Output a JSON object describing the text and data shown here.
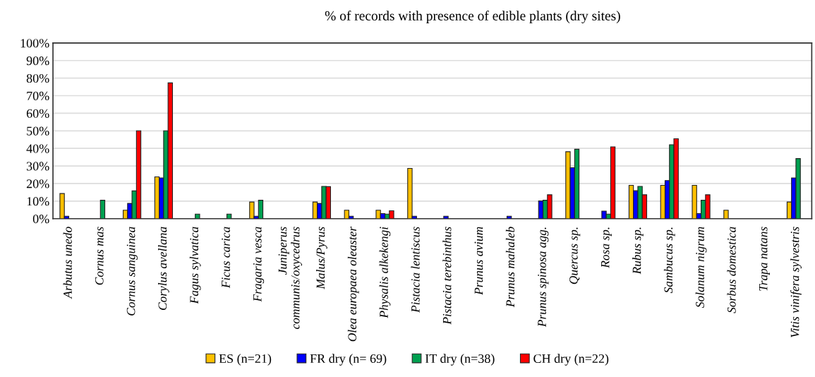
{
  "chart_data": {
    "type": "bar",
    "title": "% of records with presence of edible plants (dry sites)",
    "categories": [
      "Arbutus unedo",
      "Cornus mas",
      "Cornus sanguinea",
      "Corylus avellana",
      "Fagus sylvatica",
      "Ficus carica",
      "Fragaria vesca",
      "Juniperus\ncommunis/oxycedrus",
      "Malus/Pyrus",
      "Olea europaea oleaster",
      "Physalis alkekengi",
      "Pistacia lentiscus",
      "Pistacia terebinthus",
      "Prunus avium",
      "Prunus mahaleb",
      "Prunus spinosa agg.",
      "Quercus sp.",
      "Rosa sp.",
      "Rubus sp.",
      "Sambucus sp.",
      "Solanum nigrum",
      "Sorbus domestica",
      "Trapa natans",
      "Vitis vinifera sylvestris"
    ],
    "series": [
      {
        "name": "ES (n=21)",
        "color": "#ffc000",
        "values": [
          14.3,
          null,
          4.8,
          23.8,
          null,
          null,
          9.5,
          null,
          9.5,
          4.8,
          4.8,
          28.6,
          null,
          null,
          null,
          null,
          38.1,
          null,
          19.0,
          19.0,
          19.0,
          4.8,
          null,
          9.5
        ]
      },
      {
        "name": "FR dry (n= 69)",
        "color": "#0000ff",
        "values": [
          1.4,
          null,
          8.7,
          23.2,
          null,
          null,
          1.4,
          null,
          8.7,
          1.4,
          2.9,
          1.4,
          1.4,
          null,
          1.4,
          10.1,
          29.0,
          4.3,
          15.9,
          21.7,
          2.9,
          null,
          null,
          23.2
        ]
      },
      {
        "name": "IT dry (n=38)",
        "color": "#00a050",
        "values": [
          null,
          10.5,
          15.8,
          50.0,
          2.6,
          2.6,
          10.5,
          null,
          18.4,
          null,
          2.6,
          null,
          null,
          null,
          null,
          10.5,
          39.5,
          2.6,
          18.4,
          42.1,
          10.5,
          null,
          null,
          34.2
        ]
      },
      {
        "name": "CH dry (n=22)",
        "color": "#ff0000",
        "values": [
          null,
          null,
          50.0,
          77.3,
          null,
          null,
          null,
          null,
          18.2,
          null,
          4.5,
          null,
          null,
          null,
          null,
          13.6,
          null,
          40.9,
          13.6,
          45.5,
          13.6,
          null,
          null,
          null
        ]
      }
    ],
    "ylim": [
      0,
      100
    ],
    "yticks": [
      {
        "value": 0,
        "label": "0%"
      },
      {
        "value": 10,
        "label": "10%"
      },
      {
        "value": 20,
        "label": "20%"
      },
      {
        "value": 30,
        "label": "30%"
      },
      {
        "value": 40,
        "label": "40%"
      },
      {
        "value": 50,
        "label": "50%"
      },
      {
        "value": 60,
        "label": "60%"
      },
      {
        "value": 70,
        "label": "70%"
      },
      {
        "value": 80,
        "label": "80%"
      },
      {
        "value": 90,
        "label": "90%"
      },
      {
        "value": 100,
        "label": "100%"
      }
    ],
    "grid": "y",
    "legend": "bottom"
  }
}
